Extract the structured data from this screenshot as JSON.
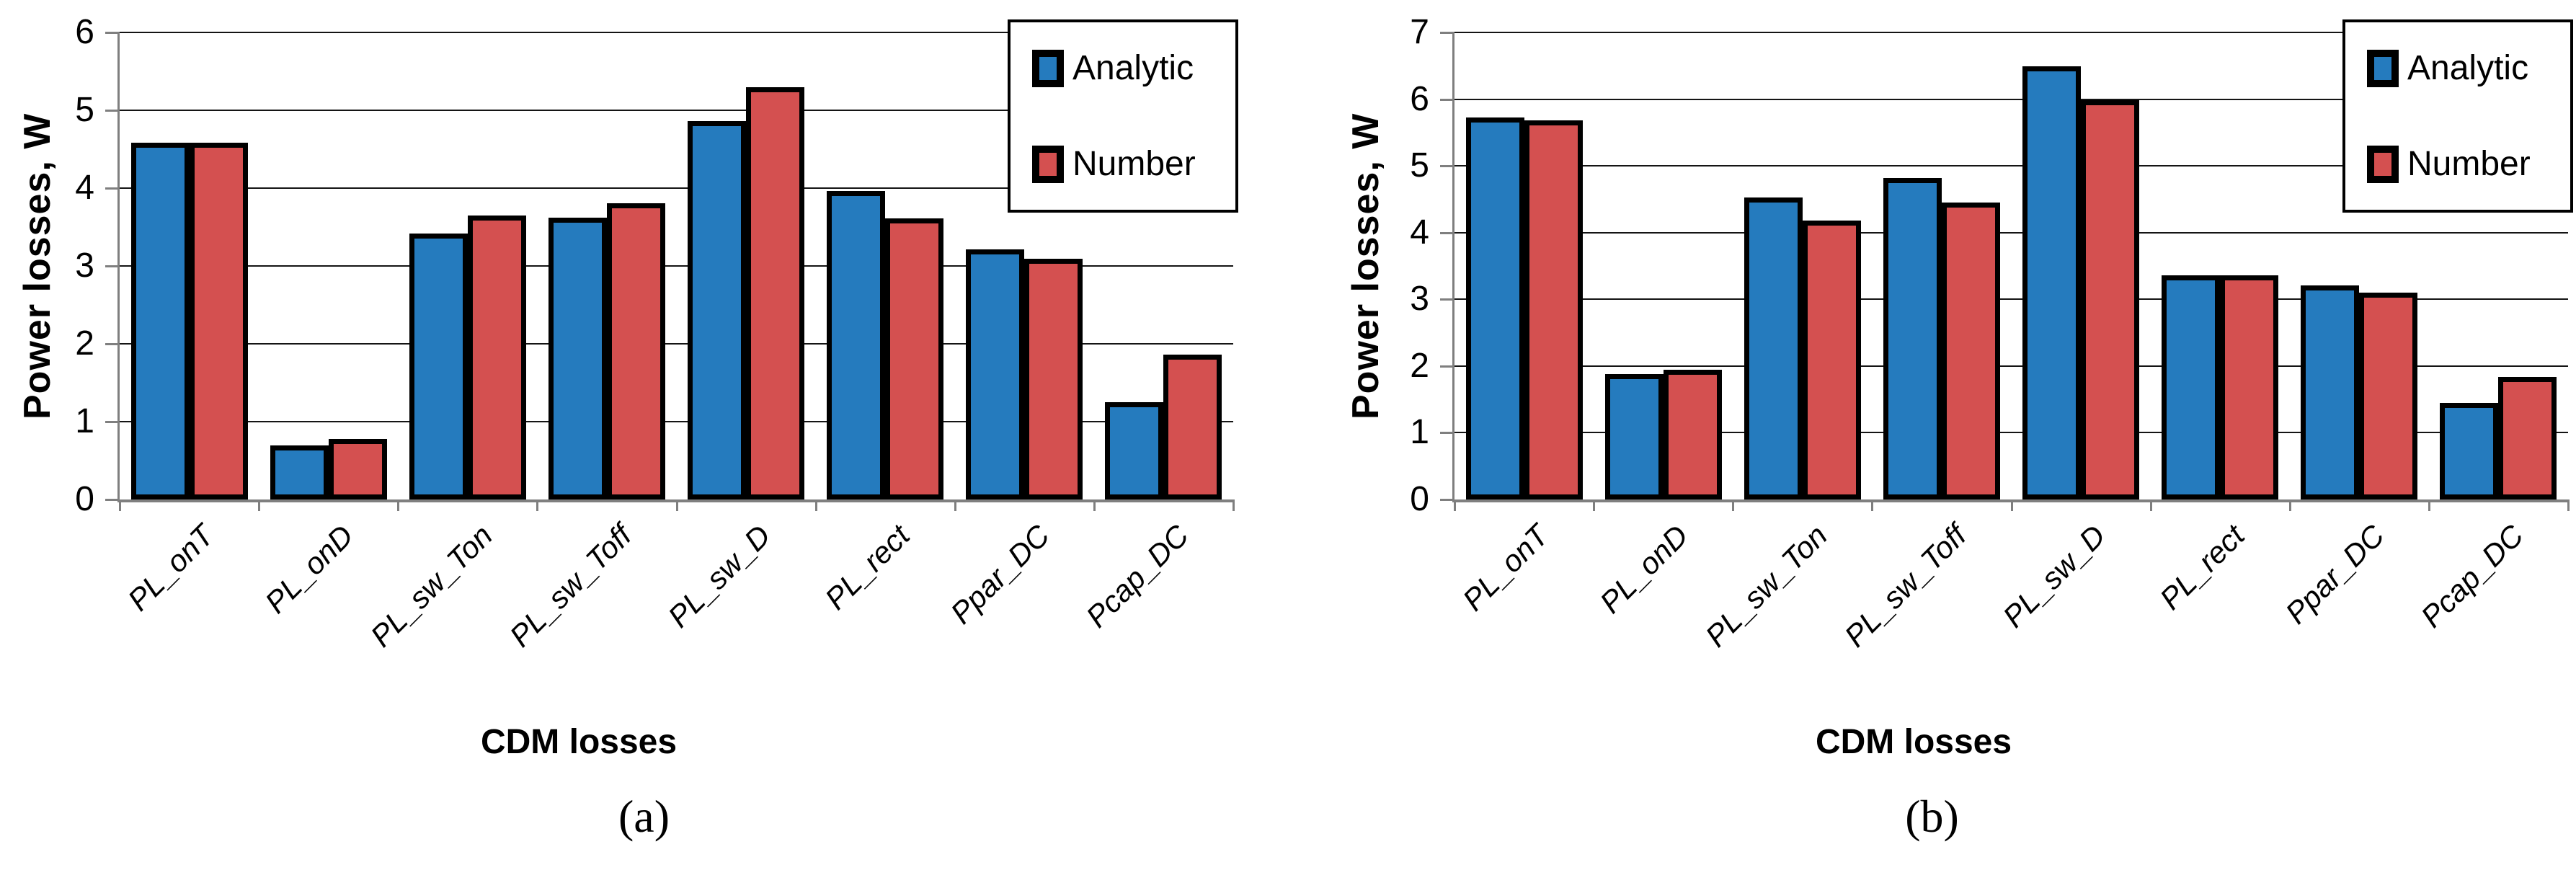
{
  "captions": [
    "(a)",
    "(b)"
  ],
  "chart_data": [
    {
      "type": "bar",
      "title": "",
      "xlabel": "CDM losses",
      "ylabel": "Power losses, W",
      "ylim": [
        0,
        6
      ],
      "ytick_step": 1,
      "grid": true,
      "legend_position": "top-right",
      "categories": [
        "PL_onT",
        "PL_onD",
        "PL_sw_Ton",
        "PL_sw_Toff",
        "PL_sw_D",
        "PL_rect",
        "Ppar_DC",
        "Pcap_DC"
      ],
      "series": [
        {
          "name": "Analytic",
          "color": "#257BBE",
          "values": [
            4.58,
            0.69,
            3.42,
            3.62,
            4.86,
            3.96,
            3.21,
            1.25
          ]
        },
        {
          "name": "Number",
          "color": "#D45050",
          "values": [
            4.58,
            0.78,
            3.65,
            3.81,
            5.3,
            3.61,
            3.09,
            1.86
          ]
        }
      ]
    },
    {
      "type": "bar",
      "title": "",
      "xlabel": "CDM losses",
      "ylabel": "Power losses, W",
      "ylim": [
        0,
        7
      ],
      "ytick_step": 1,
      "grid": true,
      "legend_position": "top-right",
      "categories": [
        "PL_onT",
        "PL_onD",
        "PL_sw_Ton",
        "PL_sw_Toff",
        "PL_sw_D",
        "PL_rect",
        "Ppar_DC",
        "Pcap_DC"
      ],
      "series": [
        {
          "name": "Analytic",
          "color": "#257BBE",
          "values": [
            5.73,
            1.88,
            4.53,
            4.82,
            6.49,
            3.36,
            3.21,
            1.45
          ]
        },
        {
          "name": "Number",
          "color": "#D45050",
          "values": [
            5.68,
            1.95,
            4.18,
            4.45,
            5.98,
            3.36,
            3.1,
            1.84
          ]
        }
      ]
    }
  ]
}
